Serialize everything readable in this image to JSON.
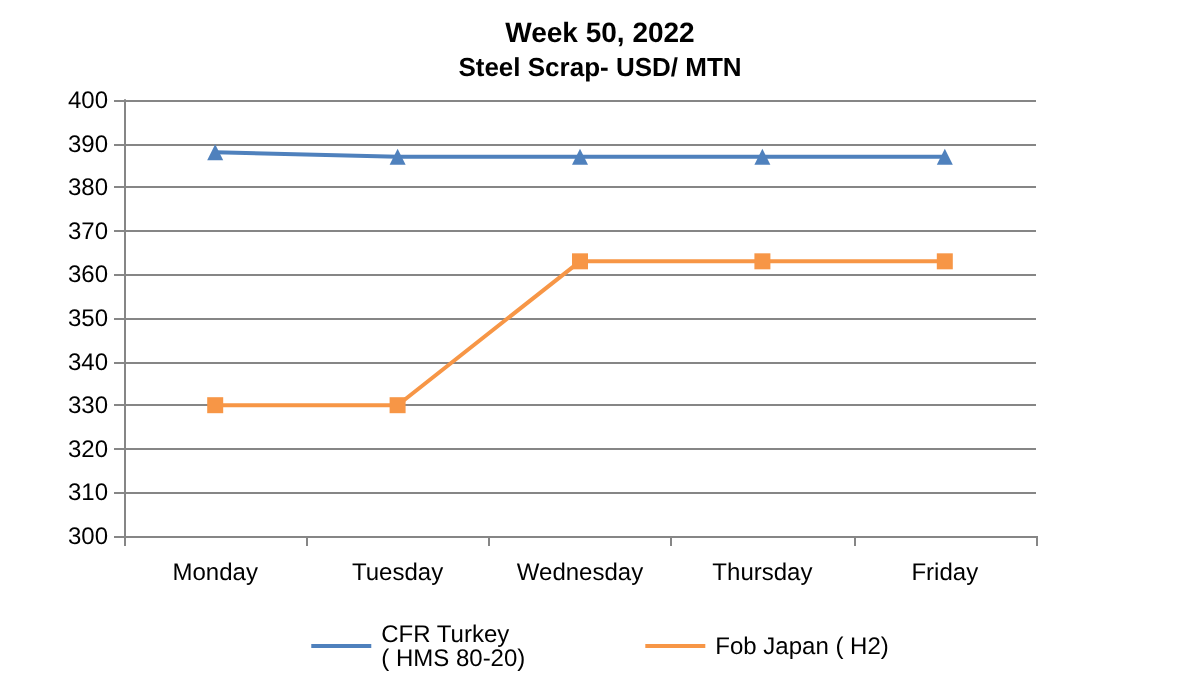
{
  "chart_data": {
    "type": "line",
    "title": "Week 50, 2022",
    "subtitle": "Steel Scrap- USD/ MTN",
    "categories": [
      "Monday",
      "Tuesday",
      "Wednesday",
      "Thursday",
      "Friday"
    ],
    "series": [
      {
        "name": "CFR Turkey\n( HMS 80-20)",
        "color": "#4f81bd",
        "marker": "triangle",
        "values": [
          388,
          387,
          387,
          387,
          387
        ]
      },
      {
        "name": "Fob Japan ( H2)",
        "color": "#f79646",
        "marker": "square",
        "values": [
          330,
          330,
          363,
          363,
          363
        ]
      }
    ],
    "ylim": [
      300,
      400
    ],
    "yticks": [
      300,
      310,
      320,
      330,
      340,
      350,
      360,
      370,
      380,
      390,
      400
    ],
    "grid": "y",
    "legend": "bottom"
  }
}
